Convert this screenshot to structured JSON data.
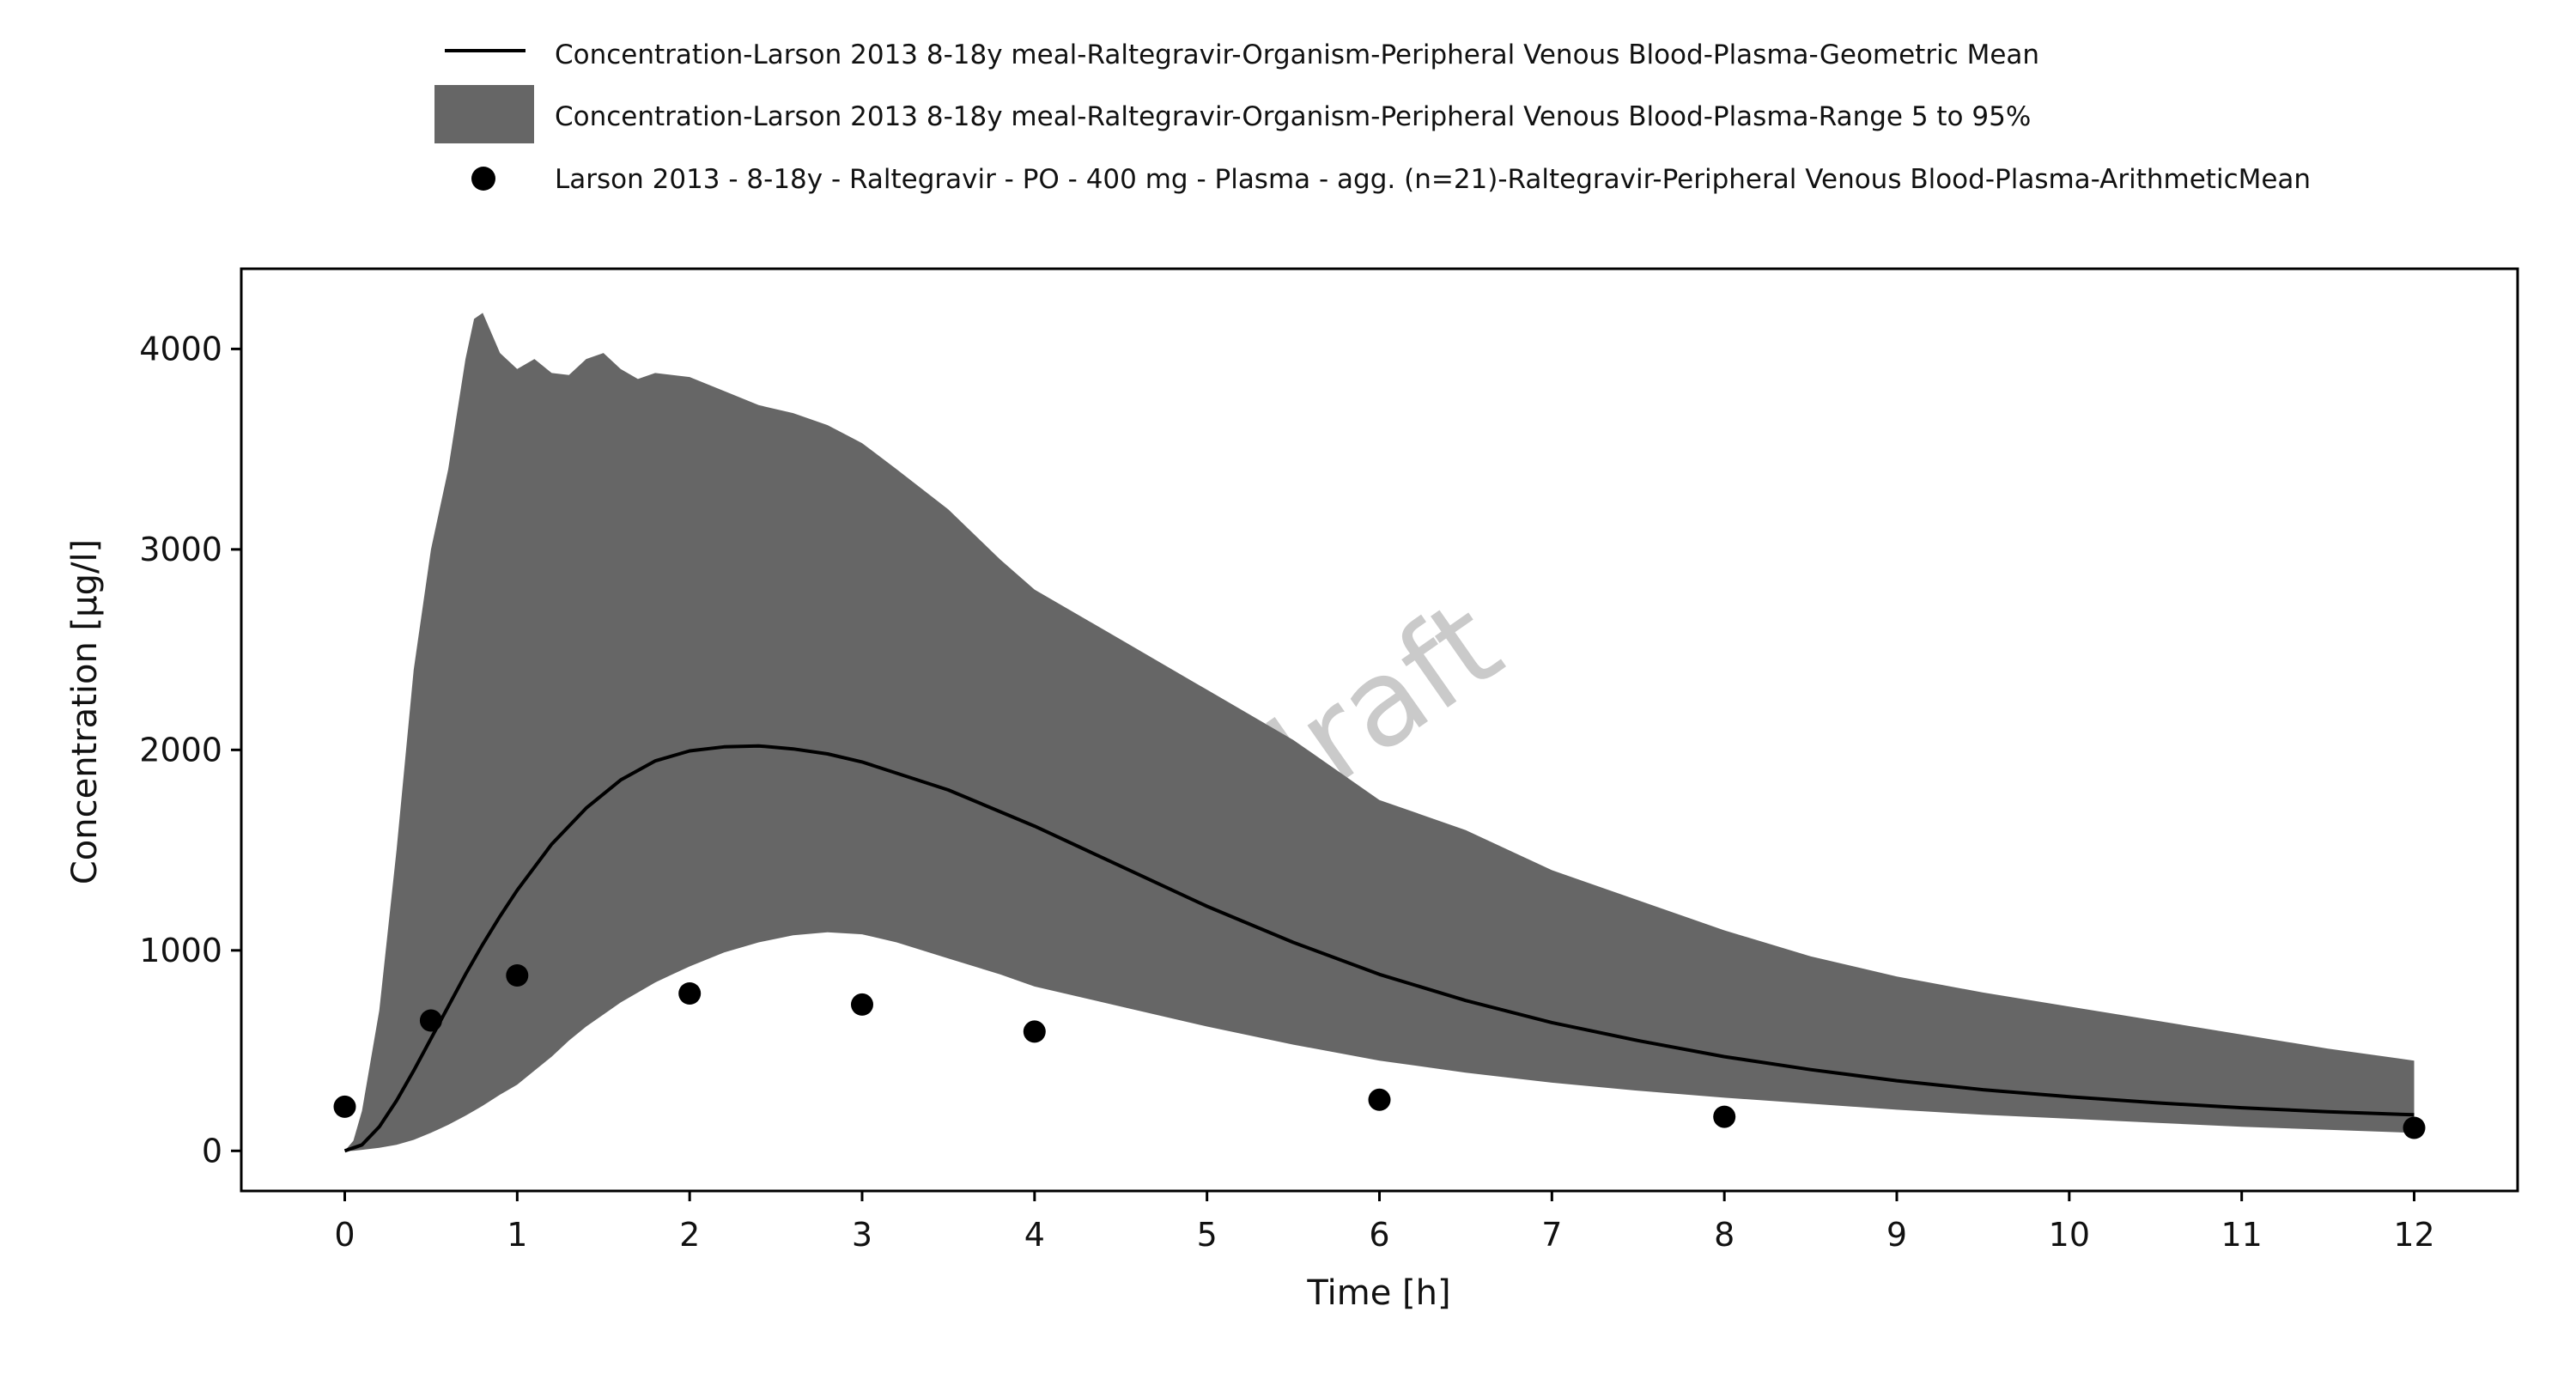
{
  "chart_data": {
    "type": "line",
    "x_label": "Time [h]",
    "y_label": "Concentration [µg/l]",
    "x_range": [
      -0.6,
      12.6
    ],
    "y_range": [
      -200,
      4400
    ],
    "x_ticks": [
      0,
      1,
      2,
      3,
      4,
      5,
      6,
      7,
      8,
      9,
      10,
      11,
      12
    ],
    "y_ticks": [
      0,
      1000,
      2000,
      3000,
      4000
    ],
    "grid": false,
    "legend_position": "top",
    "watermark": "draft",
    "series": [
      {
        "name": "Concentration-Larson 2013 8-18y meal-Raltegravir-Organism-Peripheral Venous Blood-Plasma-Geometric Mean",
        "kind": "line",
        "color": "#000000",
        "x": [
          0,
          0.1,
          0.2,
          0.3,
          0.4,
          0.5,
          0.6,
          0.7,
          0.8,
          0.9,
          1.0,
          1.2,
          1.4,
          1.6,
          1.8,
          2.0,
          2.2,
          2.4,
          2.6,
          2.8,
          3.0,
          3.5,
          4.0,
          4.5,
          5.0,
          5.5,
          6.0,
          6.5,
          7.0,
          7.5,
          8.0,
          8.5,
          9.0,
          9.5,
          10.0,
          10.5,
          11.0,
          11.5,
          12.0
        ],
        "y": [
          0,
          30,
          120,
          250,
          400,
          560,
          720,
          880,
          1030,
          1170,
          1300,
          1530,
          1710,
          1850,
          1945,
          1995,
          2015,
          2020,
          2005,
          1980,
          1940,
          1800,
          1620,
          1420,
          1220,
          1040,
          880,
          750,
          640,
          550,
          470,
          405,
          350,
          305,
          270,
          240,
          215,
          195,
          180
        ]
      },
      {
        "name": "Concentration-Larson 2013 8-18y meal-Raltegravir-Organism-Peripheral Venous Blood-Plasma-Range 5 to 95%",
        "kind": "band",
        "color": "#666666",
        "x": [
          0,
          0.05,
          0.1,
          0.2,
          0.3,
          0.4,
          0.5,
          0.6,
          0.7,
          0.75,
          0.8,
          0.9,
          1.0,
          1.1,
          1.2,
          1.3,
          1.4,
          1.5,
          1.6,
          1.7,
          1.8,
          1.9,
          2.0,
          2.2,
          2.4,
          2.6,
          2.8,
          3.0,
          3.2,
          3.5,
          3.8,
          4.0,
          4.5,
          5.0,
          5.5,
          6.0,
          6.5,
          7.0,
          7.5,
          8.0,
          8.5,
          9.0,
          9.5,
          10.0,
          10.5,
          11.0,
          11.5,
          12.0
        ],
        "lower": [
          0,
          0,
          5,
          15,
          30,
          55,
          90,
          130,
          175,
          200,
          225,
          280,
          330,
          400,
          470,
          550,
          620,
          680,
          740,
          790,
          840,
          880,
          920,
          990,
          1040,
          1075,
          1090,
          1080,
          1040,
          960,
          880,
          820,
          720,
          620,
          530,
          450,
          390,
          340,
          300,
          265,
          235,
          205,
          180,
          160,
          140,
          120,
          105,
          90
        ],
        "upper": [
          0,
          50,
          200,
          700,
          1500,
          2400,
          3000,
          3400,
          3950,
          4150,
          4180,
          3980,
          3900,
          3950,
          3880,
          3870,
          3950,
          3980,
          3900,
          3850,
          3880,
          3870,
          3860,
          3790,
          3720,
          3680,
          3620,
          3530,
          3400,
          3200,
          2950,
          2800,
          2550,
          2300,
          2050,
          1750,
          1600,
          1400,
          1250,
          1100,
          970,
          870,
          790,
          720,
          650,
          580,
          510,
          450
        ]
      },
      {
        "name": "Larson 2013 - 8-18y - Raltegravir - PO - 400 mg - Plasma - agg. (n=21)-Raltegravir-Peripheral Venous Blood-Plasma-ArithmeticMean",
        "kind": "scatter",
        "color": "#000000",
        "x": [
          0,
          0.5,
          1,
          2,
          3,
          4,
          6,
          8,
          12
        ],
        "y": [
          220,
          650,
          875,
          785,
          730,
          595,
          255,
          170,
          115
        ]
      }
    ]
  }
}
